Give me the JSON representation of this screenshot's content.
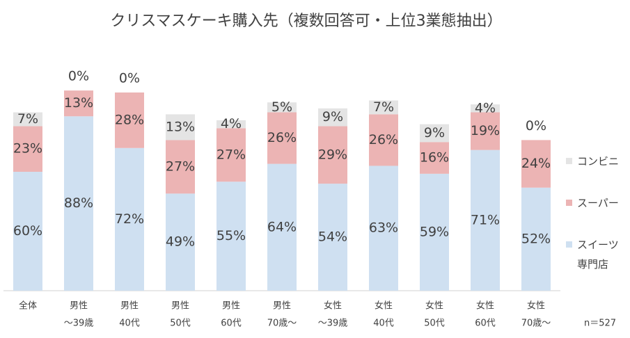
{
  "chart_data": {
    "type": "stacked_bar",
    "title": "クリスマスケーキ購入先（複数回答可・上位3業態抽出）",
    "categories": [
      [
        "全体"
      ],
      [
        "男性",
        "～39歳"
      ],
      [
        "男性",
        "40代"
      ],
      [
        "男性",
        "50代"
      ],
      [
        "男性",
        "60代"
      ],
      [
        "男性",
        "70歳～"
      ],
      [
        "女性",
        "～39歳"
      ],
      [
        "女性",
        "40代"
      ],
      [
        "女性",
        "50代"
      ],
      [
        "女性",
        "60代"
      ],
      [
        "女性",
        "70歳～"
      ]
    ],
    "series": [
      {
        "name": "スイーツ専門店",
        "color": "#cfe0f1",
        "values": [
          60,
          88,
          72,
          49,
          55,
          64,
          54,
          63,
          59,
          71,
          52
        ],
        "value_labels": [
          "60%",
          "88%",
          "72%",
          "49%",
          "55%",
          "64%",
          "54%",
          "63%",
          "59%",
          "71%",
          "52%"
        ]
      },
      {
        "name": "スーパー",
        "color": "#ecb4b4",
        "values": [
          23,
          13,
          28,
          27,
          27,
          26,
          29,
          26,
          16,
          19,
          24
        ],
        "value_labels": [
          "23%",
          "13%",
          "28%",
          "27%",
          "27%",
          "26%",
          "29%",
          "26%",
          "16%",
          "19%",
          "24%"
        ]
      },
      {
        "name": "コンビニ",
        "color": "#e4e4e4",
        "values": [
          7,
          0,
          0,
          13,
          4,
          5,
          9,
          7,
          9,
          4,
          0
        ],
        "value_labels": [
          "7%",
          "0%",
          "0%",
          "13%",
          "4%",
          "5%",
          "9%",
          "7%",
          "9%",
          "4%",
          "0%"
        ]
      }
    ],
    "ylim": [
      0,
      100
    ],
    "annotation": "n＝527",
    "legend": "right"
  }
}
